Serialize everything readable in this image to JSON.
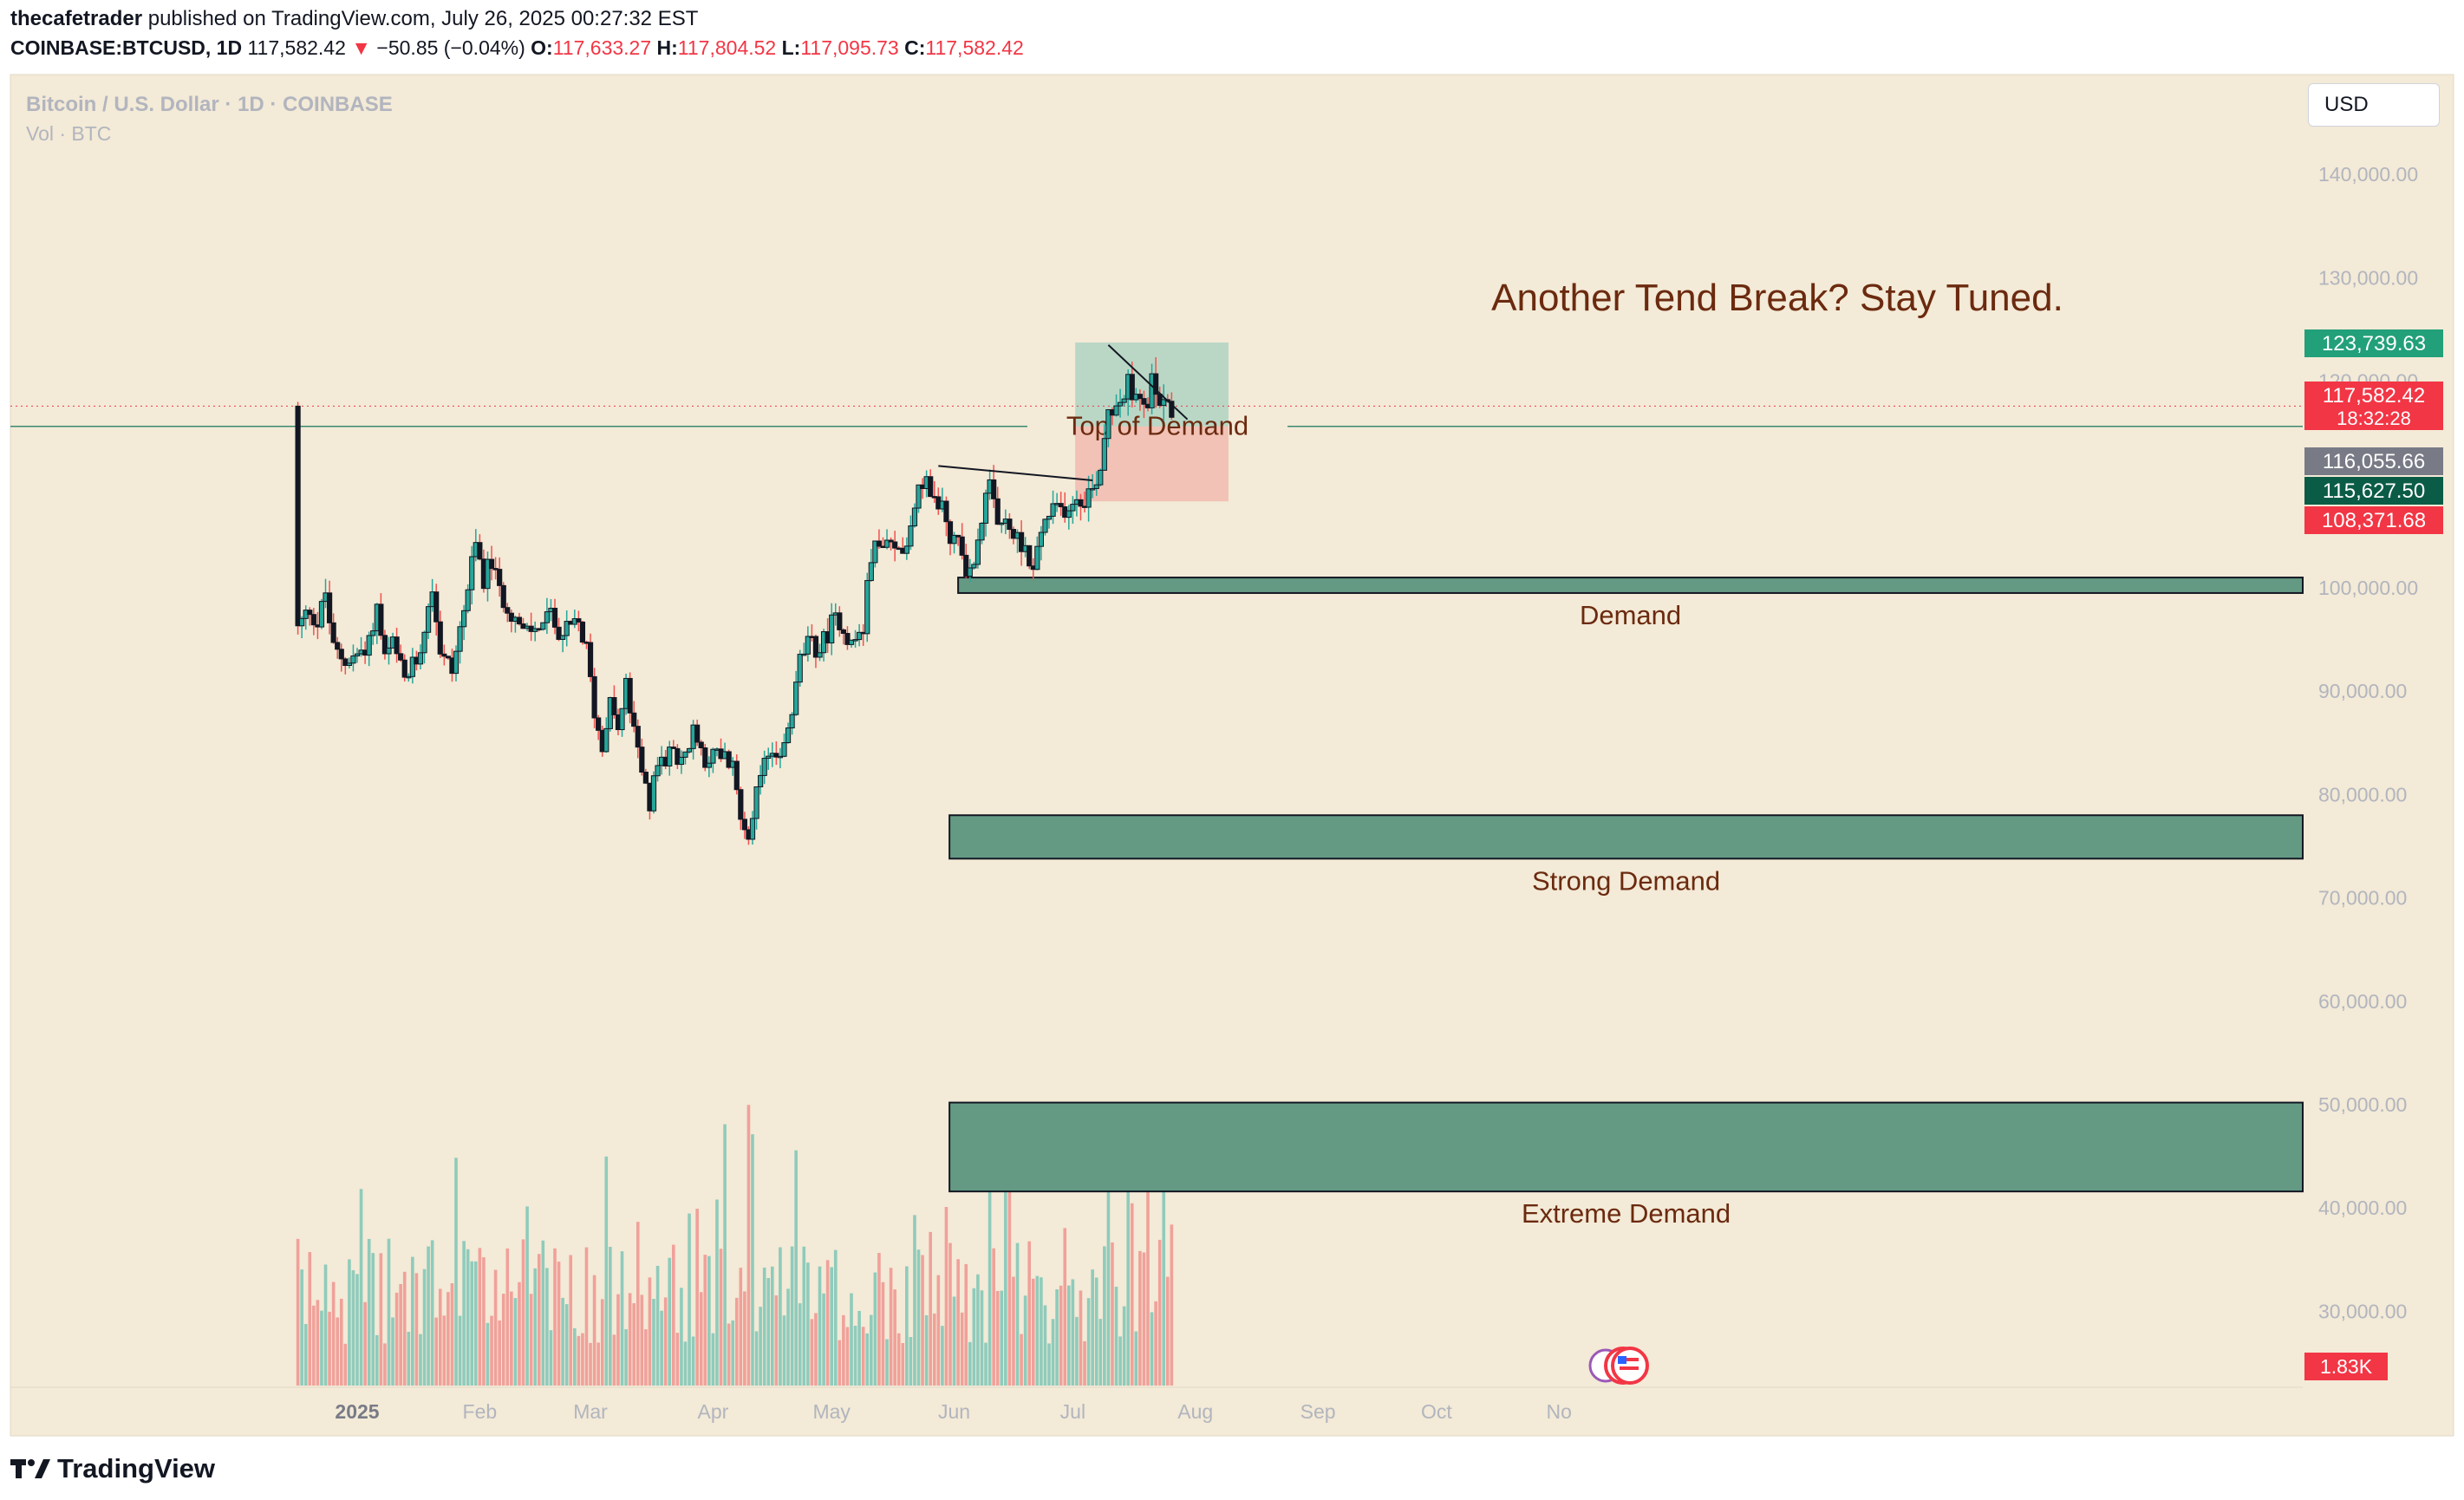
{
  "header": {
    "author": "thecafetrader",
    "published_text": "published on TradingView.com, July 26, 2025 00:27:32 EST",
    "symbol": "COINBASE:BTCUSD, 1D",
    "last": "117,582.42",
    "change_arrow": "▼",
    "change": "−50.85 (−0.04%)",
    "open_label": "O:",
    "open": "117,633.27",
    "high_label": "H:",
    "high": "117,804.52",
    "low_label": "L:",
    "low": "117,095.73",
    "close_label": "C:",
    "close": "117,582.42"
  },
  "legend": {
    "title": "Bitcoin / U.S. Dollar · 1D · COINBASE",
    "volume": "Vol · BTC"
  },
  "currency_button": "USD",
  "branding": "TradingView",
  "colors": {
    "pane_bg": "#f3ead7",
    "up": "#26a69a",
    "down": "#ef5350",
    "zone_fill": "#649a84",
    "annotation_text": "#6b2a0f",
    "price_tag_green": "#22a079",
    "price_tag_red": "#f23645",
    "price_tag_gray": "#787b86",
    "price_tag_dark": "#0b5c46"
  },
  "chart_data": {
    "type": "candlestick",
    "timeframe": "1D",
    "symbol": "BTCUSD",
    "ylim": [
      22000,
      145000
    ],
    "y_ticks": [
      {
        "value": 140000,
        "label": "140,000.00"
      },
      {
        "value": 130000,
        "label": "130,000.00"
      },
      {
        "value": 120000,
        "label": "120,000.00"
      },
      {
        "value": 100000,
        "label": "100,000.00"
      },
      {
        "value": 90000,
        "label": "90,000.00"
      },
      {
        "value": 80000,
        "label": "80,000.00"
      },
      {
        "value": 70000,
        "label": "70,000.00"
      },
      {
        "value": 60000,
        "label": "60,000.00"
      },
      {
        "value": 50000,
        "label": "50,000.00"
      },
      {
        "value": 40000,
        "label": "40,000.00"
      },
      {
        "value": 30000,
        "label": "30,000.00"
      }
    ],
    "x_ticks": [
      {
        "day": 0,
        "label": "2025",
        "bold": true
      },
      {
        "day": 31,
        "label": "Feb"
      },
      {
        "day": 59,
        "label": "Mar"
      },
      {
        "day": 90,
        "label": "Apr"
      },
      {
        "day": 120,
        "label": "May"
      },
      {
        "day": 151,
        "label": "Jun"
      },
      {
        "day": 181,
        "label": "Jul"
      },
      {
        "day": 212,
        "label": "Aug"
      },
      {
        "day": 243,
        "label": "Sep"
      },
      {
        "day": 273,
        "label": "Oct"
      },
      {
        "day": 304,
        "label": "No"
      }
    ],
    "first_day": -15,
    "last_day": 206,
    "price_path": [
      [
        -15,
        96000
      ],
      [
        -12,
        98000
      ],
      [
        -10,
        96500
      ],
      [
        -8,
        99500
      ],
      [
        -6,
        94000
      ],
      [
        -3,
        93000
      ],
      [
        0,
        93500
      ],
      [
        3,
        95000
      ],
      [
        5,
        98000
      ],
      [
        7,
        93000
      ],
      [
        9,
        94500
      ],
      [
        12,
        91000
      ],
      [
        15,
        93000
      ],
      [
        17,
        96500
      ],
      [
        19,
        100500
      ],
      [
        21,
        94000
      ],
      [
        24,
        92000
      ],
      [
        27,
        98000
      ],
      [
        30,
        104000
      ],
      [
        32,
        101000
      ],
      [
        34,
        102500
      ],
      [
        36,
        99500
      ],
      [
        38,
        98500
      ],
      [
        40,
        97000
      ],
      [
        42,
        95500
      ],
      [
        45,
        96000
      ],
      [
        48,
        97500
      ],
      [
        52,
        95500
      ],
      [
        56,
        96500
      ],
      [
        58,
        94000
      ],
      [
        60,
        88000
      ],
      [
        62,
        84500
      ],
      [
        64,
        90000
      ],
      [
        66,
        86000
      ],
      [
        68,
        90500
      ],
      [
        70,
        86000
      ],
      [
        72,
        82000
      ],
      [
        74,
        79000
      ],
      [
        76,
        83000
      ],
      [
        80,
        84000
      ],
      [
        83,
        83500
      ],
      [
        85,
        86000
      ],
      [
        88,
        83500
      ],
      [
        92,
        84000
      ],
      [
        95,
        82500
      ],
      [
        97,
        78000
      ],
      [
        99,
        76500
      ],
      [
        101,
        80000
      ],
      [
        104,
        84000
      ],
      [
        108,
        84500
      ],
      [
        110,
        88000
      ],
      [
        112,
        93000
      ],
      [
        114,
        94500
      ],
      [
        117,
        94000
      ],
      [
        120,
        96500
      ],
      [
        122,
        97000
      ],
      [
        125,
        94500
      ],
      [
        128,
        96000
      ],
      [
        130,
        103500
      ],
      [
        133,
        104000
      ],
      [
        136,
        103500
      ],
      [
        138,
        104000
      ],
      [
        140,
        106000
      ],
      [
        142,
        111000
      ],
      [
        145,
        109000
      ],
      [
        148,
        108000
      ],
      [
        150,
        105000
      ],
      [
        152,
        104500
      ],
      [
        155,
        101000
      ],
      [
        158,
        107000
      ],
      [
        160,
        109500
      ],
      [
        162,
        105500
      ],
      [
        164,
        106500
      ],
      [
        166,
        105000
      ],
      [
        168,
        104500
      ],
      [
        170,
        103000
      ],
      [
        171,
        101500
      ],
      [
        173,
        105500
      ],
      [
        175,
        107000
      ],
      [
        178,
        107500
      ],
      [
        181,
        108500
      ],
      [
        184,
        109000
      ],
      [
        186,
        109500
      ],
      [
        188,
        112000
      ],
      [
        190,
        117500
      ],
      [
        193,
        118500
      ],
      [
        195,
        119500
      ],
      [
        197,
        118000
      ],
      [
        199,
        117500
      ],
      [
        201,
        119500
      ],
      [
        203,
        118500
      ],
      [
        205,
        117600
      ],
      [
        206,
        117582
      ]
    ],
    "volume_scale_max": 2800,
    "volume_label": "1.83K",
    "current_price": 117582.42,
    "countdown": "18:32:28",
    "price_tags": [
      {
        "value": 123739.63,
        "label": "123,739.63",
        "kind": "green"
      },
      {
        "value": 117582.42,
        "label": "117,582.42",
        "kind": "red",
        "sub": "18:32:28"
      },
      {
        "value": 116055.66,
        "label": "116,055.66",
        "kind": "gray"
      },
      {
        "value": 115627.5,
        "label": "115,627.50",
        "kind": "dark"
      },
      {
        "value": 108371.68,
        "label": "108,371.68",
        "kind": "red"
      }
    ],
    "top_of_demand": {
      "value": 115627.5,
      "label": "Top of Demand"
    },
    "zones": [
      {
        "label": "Demand",
        "from_day": 152,
        "top": 101000,
        "bottom": 99500
      },
      {
        "label": "Strong Demand",
        "from_day": 152,
        "top": 78000,
        "bottom": 73800
      },
      {
        "label": "Extreme Demand",
        "from_day": 152,
        "top": 50200,
        "bottom": 41600
      }
    ],
    "position": {
      "from_day": 186,
      "to_day": 216,
      "entry": 115627.5,
      "target": 123739.63,
      "stop": 108371.68
    },
    "trendlines": [
      {
        "from": [
          147,
          111800
        ],
        "to": [
          186,
          110400
        ]
      },
      {
        "from": [
          190,
          123500
        ],
        "to": [
          210,
          116300
        ]
      }
    ],
    "headline": "Another Tend Break? Stay Tuned."
  }
}
